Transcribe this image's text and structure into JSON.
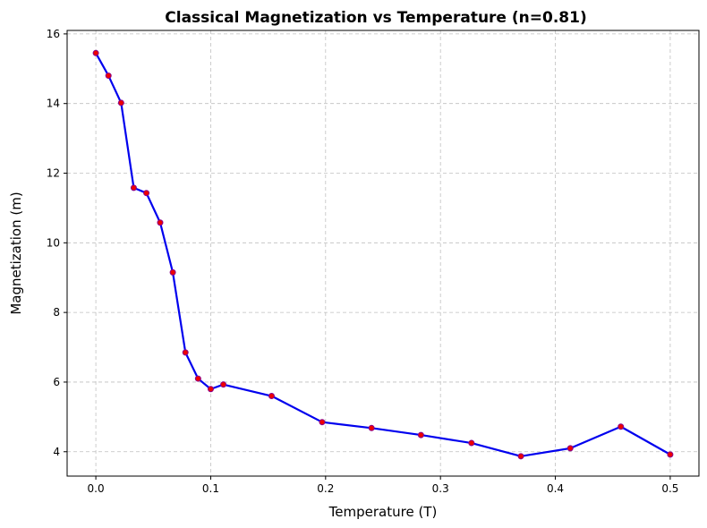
{
  "chart_data": {
    "type": "line",
    "title": "Classical Magnetization vs Temperature (n=0.81)",
    "xlabel": "Temperature (T)",
    "ylabel": "Magnetization (m)",
    "xlim": [
      -0.025,
      0.525
    ],
    "ylim": [
      3.3,
      16.1
    ],
    "x_ticks": [
      0.0,
      0.1,
      0.2,
      0.3,
      0.4,
      0.5
    ],
    "x_tick_labels": [
      "0.0",
      "0.1",
      "0.2",
      "0.3",
      "0.4",
      "0.5"
    ],
    "y_ticks": [
      4,
      6,
      8,
      10,
      12,
      14,
      16
    ],
    "y_tick_labels": [
      "4",
      "6",
      "8",
      "10",
      "12",
      "14",
      "16"
    ],
    "grid": true,
    "line_color": "#0000ee",
    "marker_color": "#ee0000",
    "marker_edge_color": "#8b008b",
    "series": [
      {
        "x": [
          0.0,
          0.011,
          0.022,
          0.033,
          0.044,
          0.056,
          0.067,
          0.078,
          0.089,
          0.1,
          0.111,
          0.153,
          0.197,
          0.24,
          0.283,
          0.327,
          0.37,
          0.413,
          0.457,
          0.5
        ],
        "y": [
          15.45,
          14.8,
          14.02,
          11.58,
          11.43,
          10.58,
          9.15,
          6.85,
          6.1,
          5.8,
          5.93,
          5.6,
          4.85,
          4.68,
          4.48,
          4.25,
          3.87,
          4.1,
          4.72,
          3.92
        ]
      }
    ]
  }
}
